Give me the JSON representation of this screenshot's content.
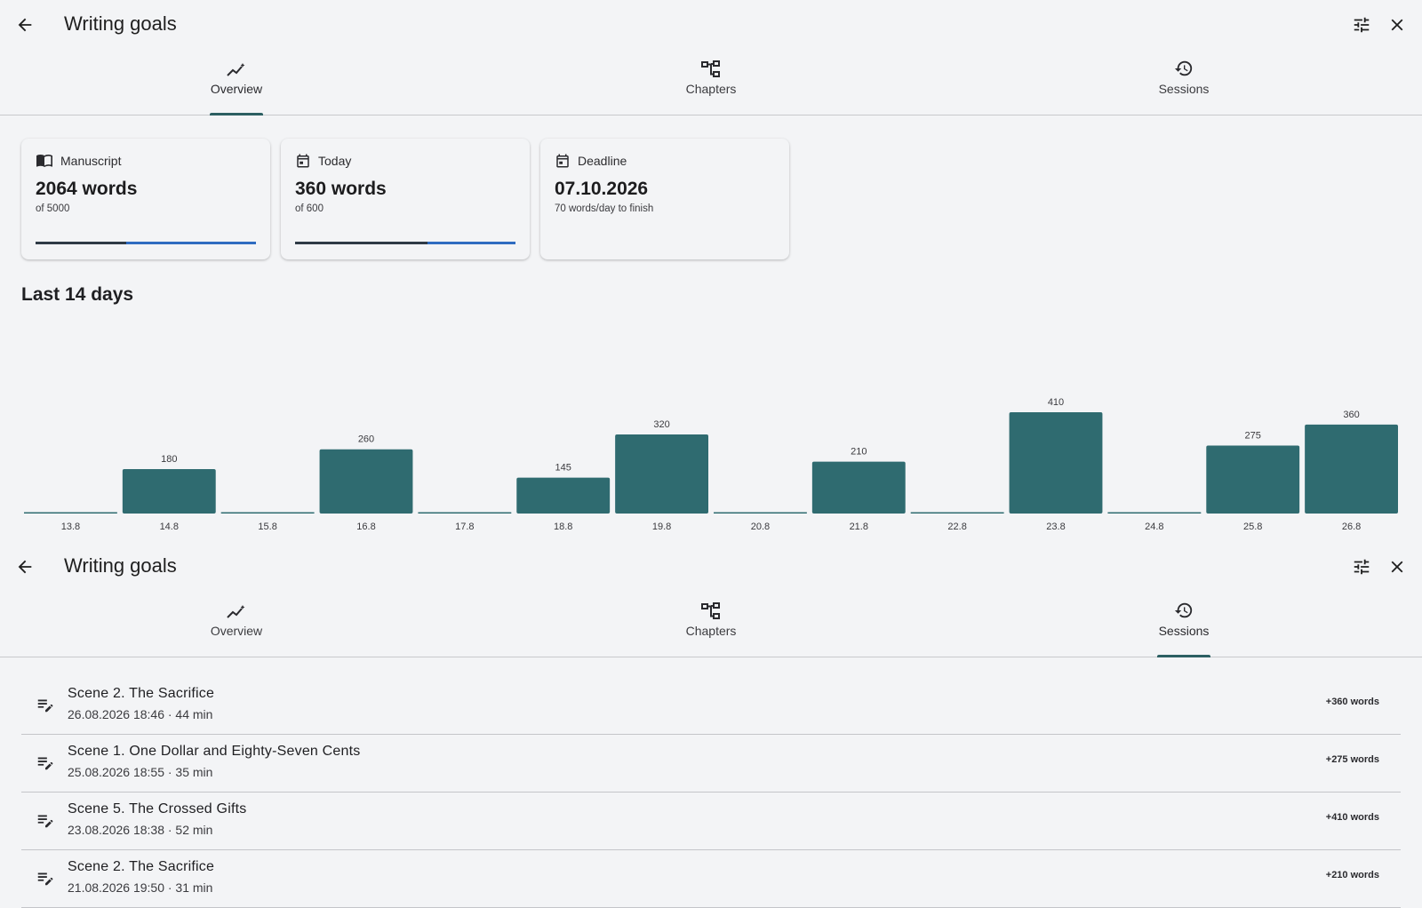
{
  "overview_panel": {
    "appbar": {
      "title": "Writing goals",
      "back_icon": "arrow-left-icon",
      "tune_icon": "tune-icon",
      "close_icon": "close-icon"
    },
    "tabs": [
      {
        "label": "Overview",
        "icon": "insights-icon",
        "active": true
      },
      {
        "label": "Chapters",
        "icon": "account-tree-icon",
        "active": false
      },
      {
        "label": "Sessions",
        "icon": "history-icon",
        "active": false
      }
    ],
    "cards": [
      {
        "icon": "book-open-icon",
        "label": "Manuscript",
        "value": "2064 words",
        "sub": "of 5000",
        "progress": 0.413
      },
      {
        "icon": "calendar-icon",
        "label": "Today",
        "value": "360 words",
        "sub": "of 600",
        "progress": 0.6
      },
      {
        "icon": "calendar-icon",
        "label": "Deadline",
        "value": "07.10.2026",
        "sub": "70 words/day to finish",
        "progress": null
      }
    ],
    "section_title": "Last 14 days",
    "colors": {
      "bar": "#2f6b70",
      "progress_done": "#2f3b46",
      "progress_rest": "#2f6cc0"
    }
  },
  "chart_data": {
    "type": "bar",
    "title": "Last 14 days",
    "categories": [
      "13.8",
      "14.8",
      "15.8",
      "16.8",
      "17.8",
      "18.8",
      "19.8",
      "20.8",
      "21.8",
      "22.8",
      "23.8",
      "24.8",
      "25.8",
      "26.8"
    ],
    "values": [
      0,
      180,
      0,
      260,
      0,
      145,
      320,
      0,
      210,
      0,
      410,
      0,
      275,
      360
    ],
    "xlabel": "",
    "ylabel": "",
    "grid": false,
    "color": "#2f6b70"
  },
  "sessions_panel": {
    "appbar": {
      "title": "Writing goals",
      "back_icon": "arrow-left-icon",
      "tune_icon": "tune-icon",
      "close_icon": "close-icon"
    },
    "tabs": [
      {
        "label": "Overview",
        "icon": "insights-icon",
        "active": false
      },
      {
        "label": "Chapters",
        "icon": "account-tree-icon",
        "active": false
      },
      {
        "label": "Sessions",
        "icon": "history-icon",
        "active": true
      }
    ],
    "sessions": [
      {
        "title": "Scene 2. The Sacrifice",
        "meta": "26.08.2026 18:46 · 44 min",
        "words": "+360 words",
        "icon": "edit-note-icon"
      },
      {
        "title": "Scene 1. One Dollar and Eighty-Seven Cents",
        "meta": "25.08.2026 18:55 · 35 min",
        "words": "+275 words",
        "icon": "edit-note-icon"
      },
      {
        "title": "Scene 5. The Crossed Gifts",
        "meta": "23.08.2026 18:38 · 52 min",
        "words": "+410 words",
        "icon": "edit-note-icon"
      },
      {
        "title": "Scene 2. The Sacrifice",
        "meta": "21.08.2026 19:50 · 31 min",
        "words": "+210 words",
        "icon": "edit-note-icon"
      }
    ]
  }
}
